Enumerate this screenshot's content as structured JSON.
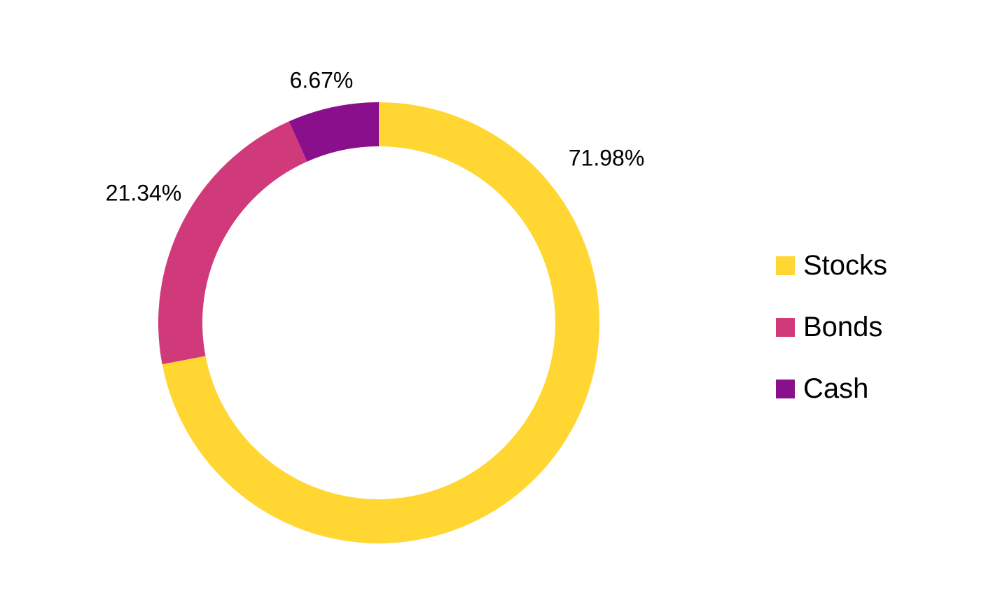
{
  "chart_data": {
    "type": "pie",
    "variant": "donut",
    "title": "",
    "categories": [
      "Stocks",
      "Bonds",
      "Cash"
    ],
    "values": [
      71.98,
      21.34,
      6.67
    ],
    "value_labels": [
      "71.98%",
      "21.34%",
      "6.67%"
    ],
    "colors": [
      "#FFD632",
      "#D13A7A",
      "#8A0F8C"
    ],
    "legend": {
      "placement": "right",
      "items": [
        {
          "label": "Stocks",
          "color": "#FFD632"
        },
        {
          "label": "Bonds",
          "color": "#D13A7A"
        },
        {
          "label": "Cash",
          "color": "#8A0F8C"
        }
      ]
    }
  }
}
